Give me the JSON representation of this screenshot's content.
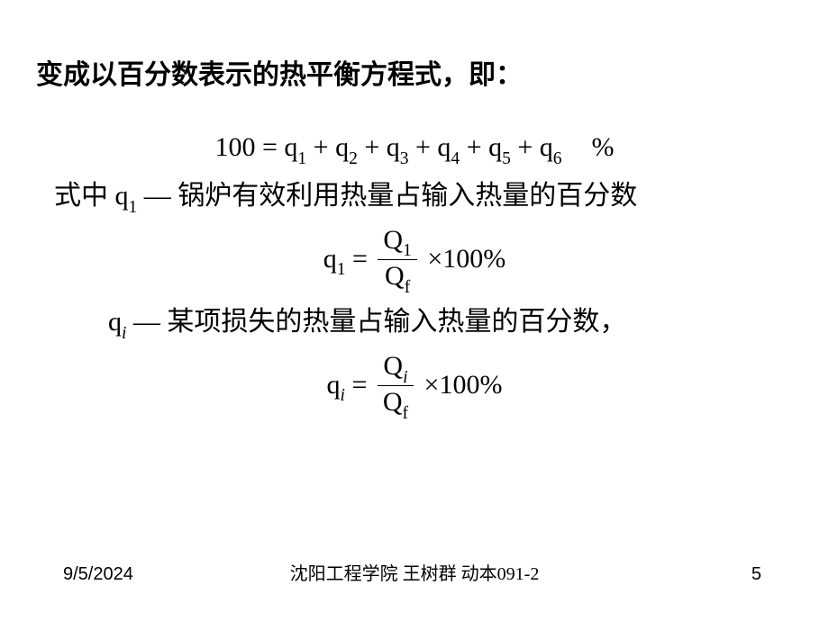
{
  "title": "变成以百分数表示的热平衡方程式，即：",
  "eq1": {
    "lhs": "100",
    "eq": "=",
    "terms": [
      "q",
      "q",
      "q",
      "q",
      "q",
      "q"
    ],
    "subs": [
      "1",
      "2",
      "3",
      "4",
      "5",
      "6"
    ],
    "plus": "+",
    "percent": "%"
  },
  "line1": {
    "prefix": "式中",
    "sym": "q",
    "sub": "1",
    "dash": "—",
    "text": "锅炉有效利用热量占输入热量的百分数"
  },
  "eq2": {
    "sym": "q",
    "sub": "1",
    "eq": "=",
    "num_sym": "Q",
    "num_sub": "1",
    "den_sym": "Q",
    "den_sub": "f",
    "times": "×",
    "hundred": "100%"
  },
  "line2": {
    "sym": "q",
    "sub": "i",
    "dash": "—",
    "text": "某项损失的热量占输入热量的百分数，"
  },
  "eq3": {
    "sym": "q",
    "sub": "i",
    "eq": "=",
    "num_sym": "Q",
    "num_sub": "i",
    "den_sym": "Q",
    "den_sub": "f",
    "times": "×",
    "hundred": "100%"
  },
  "footer": {
    "date": "9/5/2024",
    "center": "沈阳工程学院 王树群  动本091-2",
    "page": "5"
  }
}
